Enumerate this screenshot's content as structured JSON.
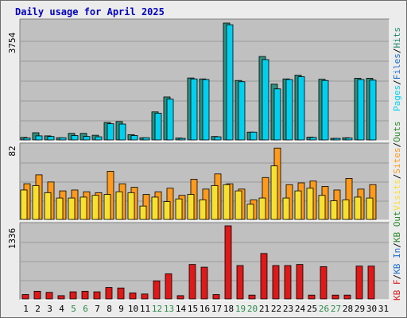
{
  "title": "Daily usage for April 2025",
  "colors": {
    "pages": "#00d0f0",
    "files": "#1e8b6e",
    "hits": "#2f8f7f",
    "visits": "#f8e030",
    "sites": "#ff9a1a",
    "kb": "#e01818",
    "weekend": "#2a8a4a",
    "weekday": "#000000"
  },
  "chart_data": [
    {
      "type": "bar",
      "panel": "top",
      "ymax_label": "3754",
      "ylim": [
        0,
        3754
      ],
      "legend": [
        "Pages",
        "Files",
        "Hits"
      ],
      "categories": [
        "1",
        "2",
        "3",
        "4",
        "5",
        "6",
        "7",
        "8",
        "9",
        "10",
        "11",
        "12",
        "13",
        "14",
        "15",
        "16",
        "17",
        "18",
        "19",
        "20",
        "21",
        "22",
        "23",
        "24",
        "25",
        "26",
        "27",
        "28",
        "29",
        "30",
        "31"
      ],
      "weekend_days": [
        5,
        6,
        12,
        13,
        19,
        20,
        26,
        27
      ],
      "series": [
        {
          "name": "Hits",
          "values": [
            80,
            230,
            130,
            70,
            210,
            210,
            150,
            560,
            590,
            170,
            70,
            900,
            1380,
            60,
            1990,
            1960,
            110,
            3754,
            1910,
            250,
            2680,
            1790,
            1960,
            2080,
            90,
            1950,
            50,
            70,
            1980,
            1980,
            0
          ]
        },
        {
          "name": "Files",
          "values": [
            60,
            130,
            110,
            70,
            140,
            110,
            100,
            520,
            510,
            140,
            70,
            860,
            1310,
            50,
            1960,
            1940,
            100,
            3700,
            1870,
            250,
            2580,
            1640,
            1940,
            2030,
            80,
            1910,
            50,
            60,
            1940,
            1920,
            0
          ]
        }
      ]
    },
    {
      "type": "bar",
      "panel": "middle",
      "ymax_label": "82",
      "ylim": [
        0,
        82
      ],
      "legend": [
        "Visits",
        "Sites",
        "Outs"
      ],
      "series": [
        {
          "name": "Visits",
          "values": [
            33,
            38,
            30,
            24,
            24,
            25,
            27,
            28,
            31,
            30,
            15,
            25,
            20,
            23,
            28,
            22,
            38,
            39,
            32,
            17,
            24,
            60,
            24,
            32,
            35,
            27,
            21,
            22,
            25,
            24,
            0
          ]
        },
        {
          "name": "Sites",
          "values": [
            40,
            50,
            42,
            32,
            33,
            31,
            30,
            54,
            40,
            36,
            28,
            31,
            35,
            27,
            45,
            34,
            51,
            40,
            34,
            22,
            47,
            80,
            39,
            41,
            43,
            37,
            33,
            46,
            34,
            39,
            0
          ]
        }
      ]
    },
    {
      "type": "bar",
      "panel": "bottom",
      "ymax_label": "1336",
      "ylim": [
        0,
        1336
      ],
      "legend": [
        "KB F",
        "KB In",
        "KB Out"
      ],
      "series": [
        {
          "name": "KB F",
          "values": [
            80,
            140,
            120,
            60,
            130,
            140,
            130,
            210,
            200,
            110,
            90,
            330,
            460,
            60,
            630,
            580,
            80,
            1336,
            610,
            70,
            830,
            610,
            610,
            630,
            70,
            590,
            70,
            70,
            600,
            600,
            0
          ]
        }
      ]
    }
  ]
}
